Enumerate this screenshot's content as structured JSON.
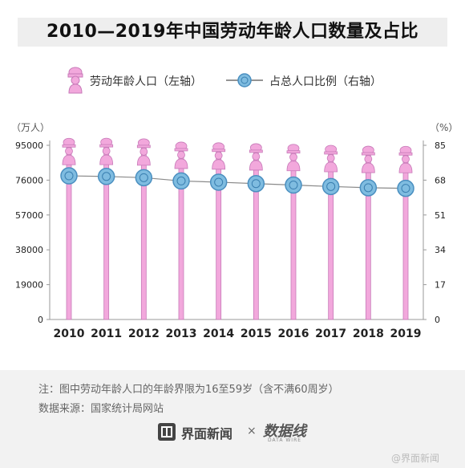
{
  "title": "2010—2019年中国劳动年龄人口数量及占比",
  "legend": {
    "series1": "劳动年龄人口（左轴）",
    "series2": "占总人口比例（右轴）"
  },
  "units": {
    "left": "（万人）",
    "right": "（%）"
  },
  "footer": {
    "note": "注：图中劳动年龄人口的年龄界限为16至59岁（含不满60周岁）",
    "source": "数据来源：国家统计局网站"
  },
  "brand": {
    "name": "界面新闻",
    "times": "×",
    "data_label": "数据线",
    "data_sub": "DATA WIRE"
  },
  "weibo": "@界面新闻",
  "colors": {
    "bar": "#f2a8dc",
    "bar_stroke": "#c77ab8",
    "circle": "#7fbce0",
    "circle_stroke": "#4a8fc0",
    "line": "#8a8a8a"
  },
  "chart_data": {
    "type": "bar",
    "categories": [
      "2010",
      "2011",
      "2012",
      "2013",
      "2014",
      "2015",
      "2016",
      "2017",
      "2018",
      "2019"
    ],
    "series": [
      {
        "name": "劳动年龄人口（左轴）",
        "axis": "left",
        "type": "bar",
        "values": [
          94000,
          94072,
          93727,
          91954,
          91583,
          91096,
          90747,
          90199,
          89729,
          89640
        ]
      },
      {
        "name": "占总人口比例（右轴）",
        "axis": "right",
        "type": "line",
        "values": [
          70.1,
          69.8,
          69.2,
          67.6,
          67.0,
          66.3,
          65.6,
          64.9,
          64.3,
          64.0
        ]
      }
    ],
    "y_left": {
      "ticks": [
        "0",
        "19000",
        "38000",
        "57000",
        "76000",
        "95000"
      ],
      "range": [
        0,
        95000
      ]
    },
    "y_right": {
      "ticks": [
        "0",
        "17",
        "34",
        "51",
        "68",
        "85"
      ],
      "range": [
        0,
        85
      ]
    },
    "grid": false
  }
}
